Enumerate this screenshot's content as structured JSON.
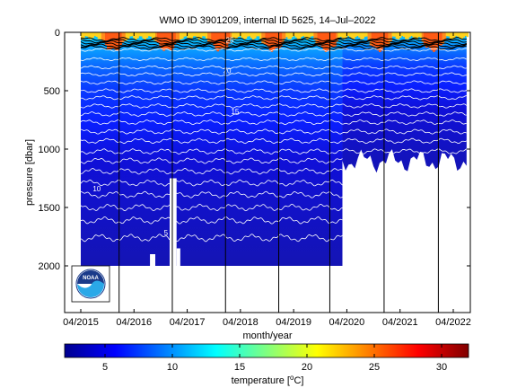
{
  "chart_data": {
    "type": "heatmap",
    "title": "WMO ID 3901209, internal ID 5625, 14–Jul–2022",
    "xlabel": "month/year",
    "ylabel": "pressure [dbar]",
    "x_tick_labels": [
      "04/2015",
      "04/2016",
      "04/2017",
      "04/2018",
      "04/2019",
      "04/2020",
      "04/2021",
      "04/2022"
    ],
    "x_range": [
      "2015-04",
      "2022-07"
    ],
    "y_ticks": [
      0,
      500,
      1000,
      1500,
      2000
    ],
    "y_range": [
      2400,
      0
    ],
    "y_reversed": true,
    "contour_labels": [
      "25",
      "20",
      "15",
      "10",
      "5"
    ],
    "contour_isotherms_degC": [
      25,
      20,
      15,
      10,
      5
    ],
    "colorbar": {
      "label_prefix": "temperature [",
      "label_unit_super": "o",
      "label_suffix": "C]",
      "range": [
        2,
        32
      ],
      "ticks": [
        5,
        10,
        15,
        20,
        25,
        30
      ],
      "colormap": "jet"
    },
    "profile_depth_dbar": {
      "2015-04_to_2020-03": 2000,
      "2020-03_to_2022-07": 1100
    },
    "logo_text": "NOAA",
    "colors": {
      "deep": "#1212b4",
      "mid": "#0a3cff",
      "upper": "#0a9cff",
      "surface": "#0adcf0",
      "warm_surface": "#ff5a14",
      "contour": "#ffffff"
    }
  }
}
